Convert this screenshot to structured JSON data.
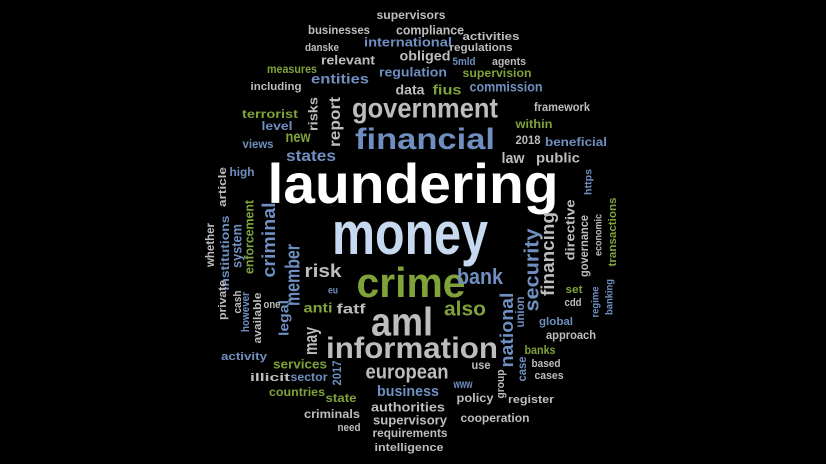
{
  "palette": {
    "white": "#ffffff",
    "light": "#c7d9ee",
    "blue": "#6f8fc0",
    "green": "#7fa33a",
    "gray": "#bdbdbd",
    "background": "#000000"
  },
  "words": [
    {
      "text": "laundering"
    },
    {
      "text": "money"
    },
    {
      "text": "crime"
    },
    {
      "text": "aml"
    },
    {
      "text": "information"
    },
    {
      "text": "financial"
    },
    {
      "text": "government"
    },
    {
      "text": "european"
    },
    {
      "text": "bank"
    },
    {
      "text": "also"
    },
    {
      "text": "security"
    },
    {
      "text": "national"
    },
    {
      "text": "financing"
    },
    {
      "text": "risk"
    },
    {
      "text": "member"
    },
    {
      "text": "states"
    },
    {
      "text": "new"
    },
    {
      "text": "report"
    },
    {
      "text": "risks"
    },
    {
      "text": "criminal"
    },
    {
      "text": "legal"
    },
    {
      "text": "may"
    },
    {
      "text": "anti"
    },
    {
      "text": "fatf"
    },
    {
      "text": "business"
    },
    {
      "text": "authorities"
    },
    {
      "text": "supervisory"
    },
    {
      "text": "requirements"
    },
    {
      "text": "intelligence"
    },
    {
      "text": "cooperation"
    },
    {
      "text": "criminals"
    },
    {
      "text": "need"
    },
    {
      "text": "policy"
    },
    {
      "text": "register"
    },
    {
      "text": "state"
    },
    {
      "text": "countries"
    },
    {
      "text": "sector"
    },
    {
      "text": "services"
    },
    {
      "text": "2017"
    },
    {
      "text": "www"
    },
    {
      "text": "use"
    },
    {
      "text": "group"
    },
    {
      "text": "case"
    },
    {
      "text": "cases"
    },
    {
      "text": "based"
    },
    {
      "text": "banks"
    },
    {
      "text": "approach"
    },
    {
      "text": "global"
    },
    {
      "text": "cdd"
    },
    {
      "text": "set"
    },
    {
      "text": "regime"
    },
    {
      "text": "banking"
    },
    {
      "text": "union"
    },
    {
      "text": "directive"
    },
    {
      "text": "governance"
    },
    {
      "text": "economic"
    },
    {
      "text": "transactions"
    },
    {
      "text": "https"
    },
    {
      "text": "law"
    },
    {
      "text": "public"
    },
    {
      "text": "2018"
    },
    {
      "text": "beneficial"
    },
    {
      "text": "framework"
    },
    {
      "text": "within"
    },
    {
      "text": "data"
    },
    {
      "text": "fius"
    },
    {
      "text": "commission"
    },
    {
      "text": "regulation"
    },
    {
      "text": "supervision"
    },
    {
      "text": "obliged"
    },
    {
      "text": "5mld"
    },
    {
      "text": "agents"
    },
    {
      "text": "relevant"
    },
    {
      "text": "entities"
    },
    {
      "text": "measures"
    },
    {
      "text": "including"
    },
    {
      "text": "international"
    },
    {
      "text": "regulations"
    },
    {
      "text": "danske"
    },
    {
      "text": "businesses"
    },
    {
      "text": "compliance"
    },
    {
      "text": "activities"
    },
    {
      "text": "supervisors"
    },
    {
      "text": "terrorist"
    },
    {
      "text": "level"
    },
    {
      "text": "views"
    },
    {
      "text": "high"
    },
    {
      "text": "article"
    },
    {
      "text": "system"
    },
    {
      "text": "enforcement"
    },
    {
      "text": "institutions"
    },
    {
      "text": "whether"
    },
    {
      "text": "private"
    },
    {
      "text": "cash"
    },
    {
      "text": "however"
    },
    {
      "text": "available"
    },
    {
      "text": "one"
    },
    {
      "text": "eu"
    },
    {
      "text": "activity"
    },
    {
      "text": "illicit"
    }
  ]
}
